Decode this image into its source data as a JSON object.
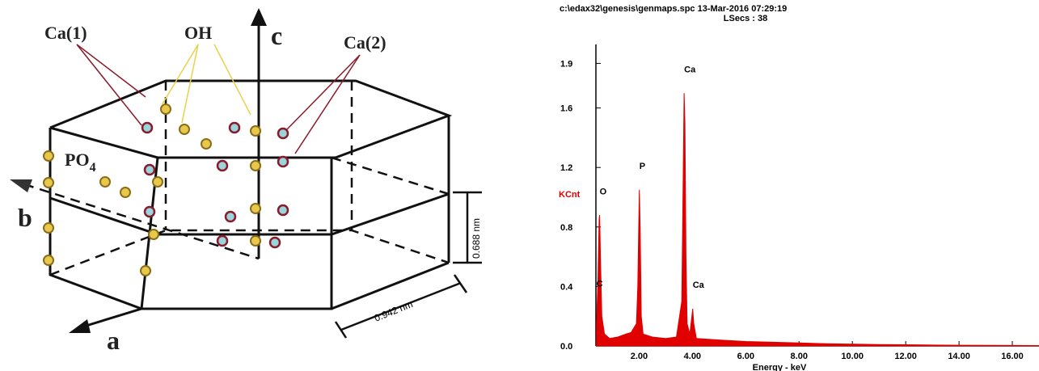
{
  "diagram": {
    "ca1": "Ca(1)",
    "oh": "OH",
    "c_axis": "c",
    "ca2": "Ca(2)",
    "po4": [
      "PO",
      "4"
    ],
    "b_axis": "b",
    "a_axis": "a",
    "height": "0.688 nm",
    "width": "0.942 nm"
  },
  "chart_data": {
    "type": "area",
    "title": "c:\\edax32\\genesis\\genmaps.spc  13-Mar-2016 07:29:19",
    "subtitle": "LSecs : 38",
    "x_label": "Energy - keV",
    "y_label": "KCnt",
    "color": "#e00000",
    "x": [
      0.4,
      0.45,
      0.5,
      0.52,
      0.55,
      0.6,
      0.7,
      0.9,
      1.2,
      1.5,
      1.7,
      1.9,
      1.95,
      2.0,
      2.01,
      2.04,
      2.08,
      2.15,
      2.5,
      3.0,
      3.4,
      3.6,
      3.66,
      3.69,
      3.72,
      3.76,
      3.8,
      3.9,
      3.98,
      4.01,
      4.05,
      4.15,
      5,
      6,
      7,
      8,
      9,
      10,
      11,
      12,
      13,
      14,
      15,
      16,
      17
    ],
    "values": [
      0.15,
      0.4,
      0.85,
      0.88,
      0.6,
      0.2,
      0.08,
      0.05,
      0.06,
      0.08,
      0.09,
      0.15,
      0.4,
      0.95,
      1.05,
      0.8,
      0.2,
      0.08,
      0.06,
      0.05,
      0.06,
      0.3,
      1.2,
      1.7,
      1.5,
      0.6,
      0.15,
      0.08,
      0.2,
      0.25,
      0.15,
      0.05,
      0.04,
      0.03,
      0.025,
      0.02,
      0.015,
      0.012,
      0.01,
      0.008,
      0.006,
      0.005,
      0.004,
      0.003,
      0.002
    ],
    "annotations": [
      {
        "text": "C",
        "x": 0.4,
        "y": 0.4
      },
      {
        "text": "O",
        "x": 0.52,
        "y": 1.02
      },
      {
        "text": "P",
        "x": 2.01,
        "y": 1.19
      },
      {
        "text": "Ca",
        "x": 3.69,
        "y": 1.84
      },
      {
        "text": "Ca",
        "x": 4.01,
        "y": 0.39
      }
    ],
    "xlim": [
      0.38,
      17
    ],
    "ylim": [
      0,
      2.0
    ],
    "xticks": [
      {
        "value": 2,
        "label": "2.00"
      },
      {
        "value": 4,
        "label": "4.00"
      },
      {
        "value": 6,
        "label": "6.00"
      },
      {
        "value": 8,
        "label": "8.00"
      },
      {
        "value": 10,
        "label": "10.00"
      },
      {
        "value": 12,
        "label": "12.00"
      },
      {
        "value": 14,
        "label": "14.00"
      },
      {
        "value": 16,
        "label": "16.00"
      }
    ],
    "yticks": [
      {
        "value": 0,
        "label": "0.0"
      },
      0.4,
      0.8,
      1.2,
      1.6,
      1.9
    ],
    "grid": false
  }
}
